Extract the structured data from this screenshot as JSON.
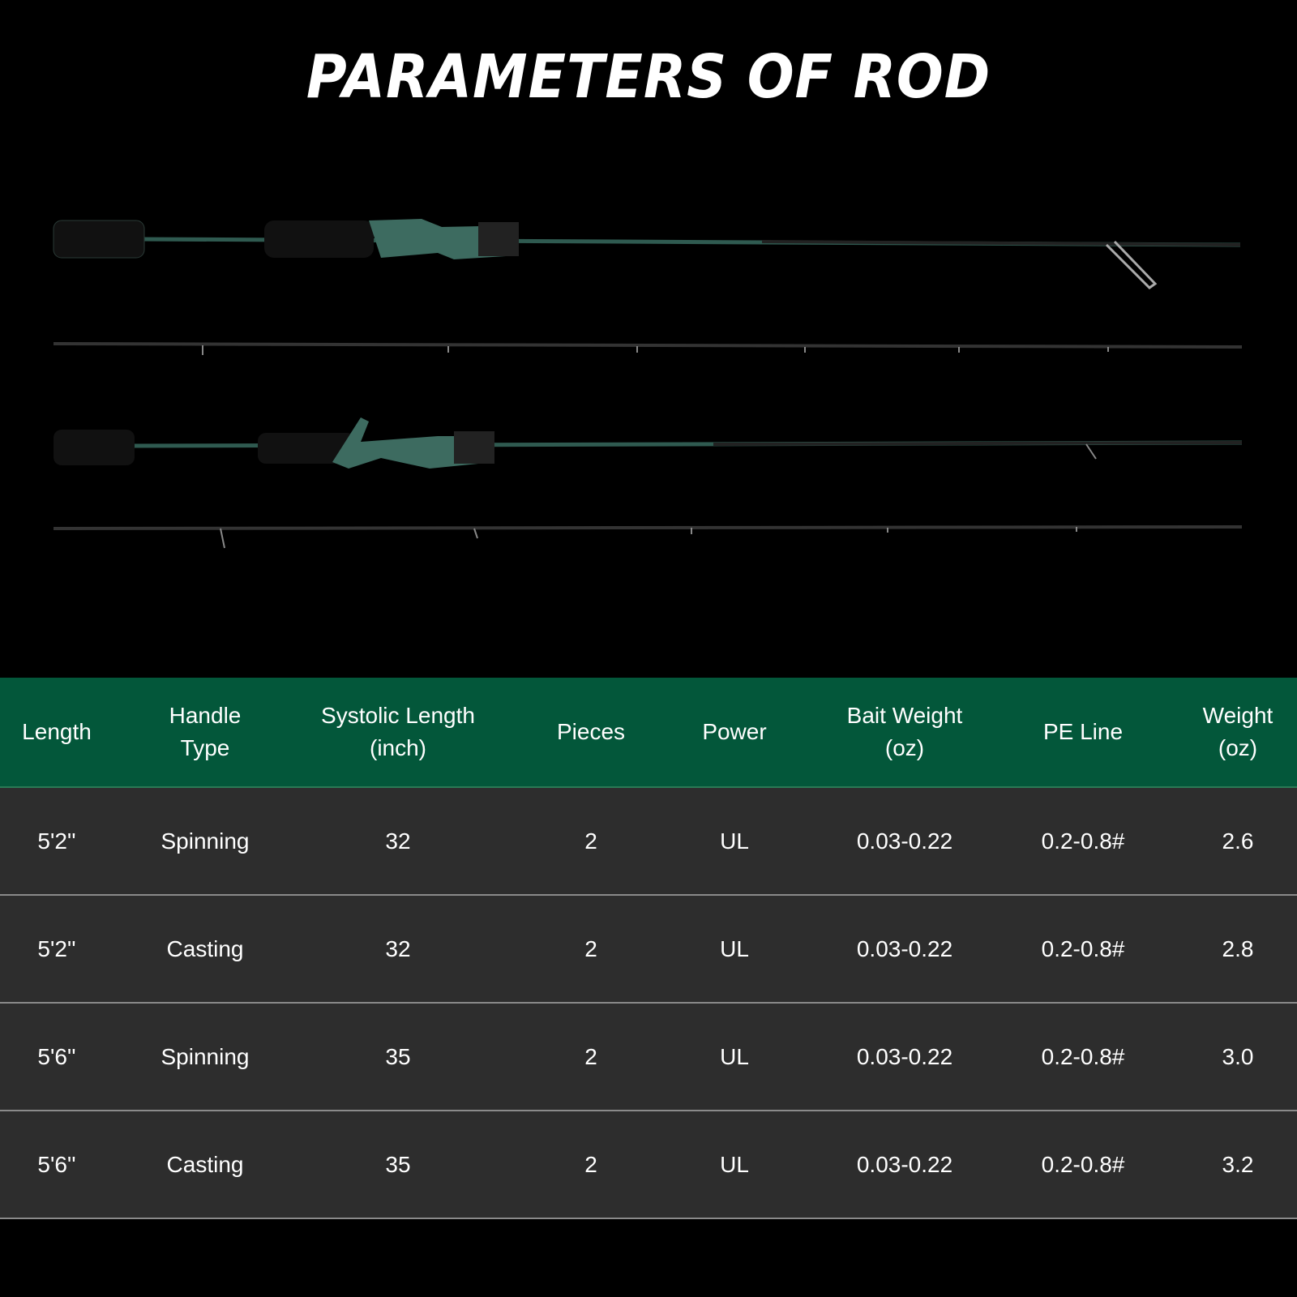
{
  "title": "PARAMETERS OF ROD",
  "colors": {
    "header_bg": "#03573a",
    "row_bg": "#2d2d2d",
    "background": "#000000",
    "rod_accent": "#3d6b60"
  },
  "images": [
    "spinning-rod-butt-section",
    "spinning-rod-tip-section",
    "casting-rod-butt-section",
    "casting-rod-tip-section"
  ],
  "table": {
    "headers": [
      "Length",
      "Handle\nType",
      "Systolic Length\n(inch)",
      "Pieces",
      "Power",
      "Bait Weight\n(oz)",
      "PE Line",
      "Weight\n(oz)"
    ],
    "rows": [
      [
        "5'2''",
        "Spinning",
        "32",
        "2",
        "UL",
        "0.03-0.22",
        "0.2-0.8#",
        "2.6"
      ],
      [
        "5'2''",
        "Casting",
        "32",
        "2",
        "UL",
        "0.03-0.22",
        "0.2-0.8#",
        "2.8"
      ],
      [
        "5'6''",
        "Spinning",
        "35",
        "2",
        "UL",
        "0.03-0.22",
        "0.2-0.8#",
        "3.0"
      ],
      [
        "5'6''",
        "Casting",
        "35",
        "2",
        "UL",
        "0.03-0.22",
        "0.2-0.8#",
        "3.2"
      ]
    ]
  }
}
